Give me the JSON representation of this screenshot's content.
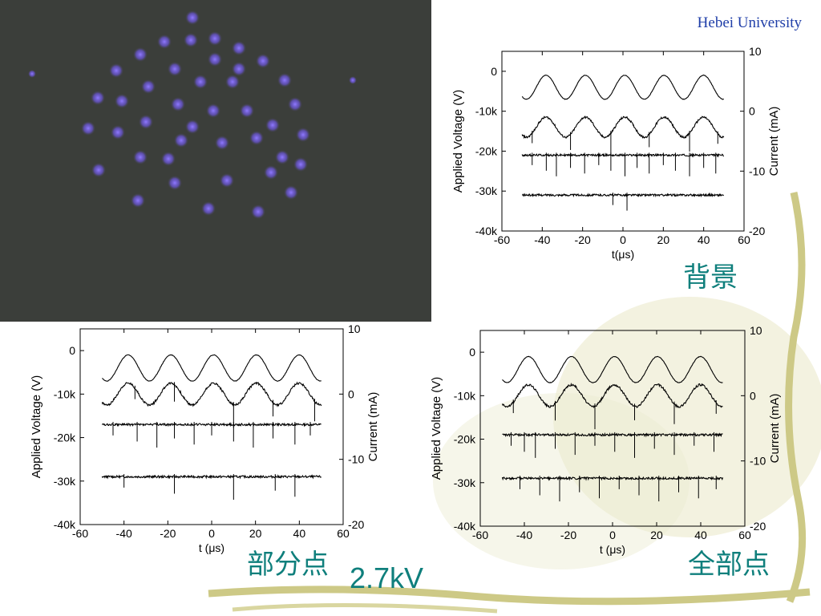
{
  "header": {
    "university": "Hebei University"
  },
  "captions": {
    "background": "背景",
    "partial": "部分点",
    "all": "全部点",
    "voltage": "2.7kV"
  },
  "colors": {
    "caption": "#0f7f7c",
    "university": "#1f3ea8",
    "photo_bg": "#3b3e3a",
    "spot": "#7b63e6"
  },
  "photo": {
    "description_icon": "discharge-spots-photo"
  },
  "chart_data": [
    {
      "type": "line",
      "xlabel": "t(μs)",
      "ylabel": "Applied Voltage (V)",
      "y2label": "Current (mA)",
      "xlim": [
        -60,
        60
      ],
      "ylim": [
        -40000,
        5000
      ],
      "y2lim": [
        -20,
        10
      ],
      "xticks": [
        "-60",
        "-40",
        "-20",
        "0",
        "20",
        "40",
        "60"
      ],
      "yticks": [
        "0",
        "-10k",
        "-20k",
        "-30k",
        "-40k"
      ],
      "y2ticks": [
        "10",
        "0",
        "-10",
        "-20"
      ],
      "series": [
        {
          "kind": "voltage",
          "offset": -4000,
          "amp": 3000,
          "spikes": []
        },
        {
          "kind": "current",
          "offset": -14000,
          "amp": 2500,
          "spikes": [
            -45,
            -26,
            -6,
            13,
            33,
            47
          ]
        },
        {
          "kind": "current",
          "offset": -21000,
          "amp": 0,
          "spikes": [
            -45,
            -38,
            -33,
            -26,
            -19,
            -12,
            -6,
            1,
            7,
            13,
            20,
            26,
            33,
            40,
            46
          ]
        },
        {
          "kind": "current",
          "offset": -31000,
          "amp": 0,
          "spikes": [
            -5,
            2
          ]
        }
      ]
    },
    {
      "type": "line",
      "xlabel": "t (μs)",
      "ylabel": "Applied Voltage (V)",
      "y2label": "Current (mA)",
      "xlim": [
        -60,
        60
      ],
      "ylim": [
        -40000,
        5000
      ],
      "y2lim": [
        -20,
        10
      ],
      "xticks": [
        "-60",
        "-40",
        "-20",
        "0",
        "20",
        "40",
        "60"
      ],
      "yticks": [
        "0",
        "-10k",
        "-20k",
        "-30k",
        "-40k"
      ],
      "y2ticks": [
        "10",
        "0",
        "-10",
        "-20"
      ],
      "series": [
        {
          "kind": "voltage",
          "offset": -4000,
          "amp": 3000,
          "spikes": []
        },
        {
          "kind": "current",
          "offset": -10000,
          "amp": 2500,
          "spikes": [
            -35,
            -17,
            10,
            28,
            47
          ]
        },
        {
          "kind": "current",
          "offset": -17000,
          "amp": 0,
          "spikes": [
            -45,
            -34,
            -25,
            -17,
            -8,
            0,
            10,
            19,
            28,
            38,
            45
          ]
        },
        {
          "kind": "current",
          "offset": -29000,
          "amp": 0,
          "spikes": [
            -40,
            -17,
            10,
            29,
            38
          ]
        }
      ]
    },
    {
      "type": "line",
      "xlabel": "t (μs)",
      "ylabel": "Applied Voltage (V)",
      "y2label": "Current (mA)",
      "xlim": [
        -60,
        60
      ],
      "ylim": [
        -40000,
        5000
      ],
      "y2lim": [
        -20,
        10
      ],
      "xticks": [
        "-60",
        "-40",
        "-20",
        "0",
        "20",
        "40",
        "60"
      ],
      "yticks": [
        "0",
        "-10k",
        "-20k",
        "-30k",
        "-40k"
      ],
      "y2ticks": [
        "10",
        "0",
        "-10",
        "-20"
      ],
      "series": [
        {
          "kind": "voltage",
          "offset": -4000,
          "amp": 3000,
          "spikes": []
        },
        {
          "kind": "current",
          "offset": -10000,
          "amp": 2500,
          "spikes": [
            -45,
            -26,
            -8,
            10,
            28,
            47
          ]
        },
        {
          "kind": "current",
          "offset": -19000,
          "amp": 0,
          "spikes": [
            -46,
            -40,
            -35,
            -26,
            -17,
            -8,
            1,
            10,
            19,
            28,
            37,
            46
          ]
        },
        {
          "kind": "current",
          "offset": -29000,
          "amp": 0,
          "spikes": [
            -42,
            -33,
            -24,
            -15,
            -6,
            3,
            12,
            21,
            30,
            39,
            47
          ]
        }
      ]
    }
  ]
}
